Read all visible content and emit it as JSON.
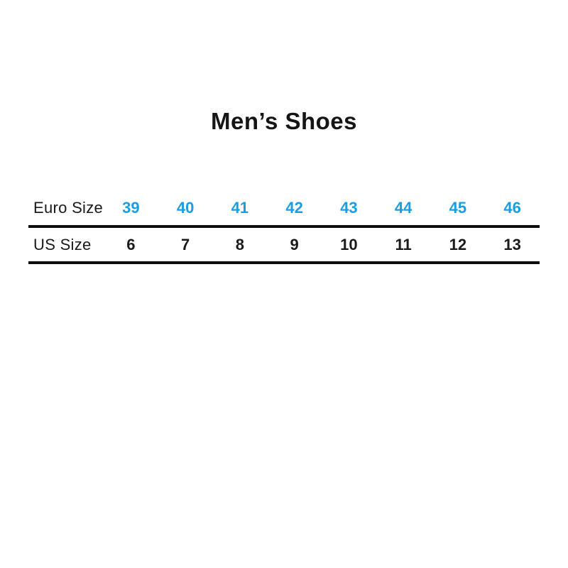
{
  "title": "Men’s Shoes",
  "colors": {
    "accent_blue": "#1b9de2",
    "text": "#1a1a1a",
    "rule_line": "#0d0d0d",
    "background": "#ffffff"
  },
  "table": {
    "rows": [
      {
        "label": "Euro Size",
        "values": [
          "39",
          "40",
          "41",
          "42",
          "43",
          "44",
          "45",
          "46"
        ]
      },
      {
        "label": "US Size",
        "values": [
          "6",
          "7",
          "8",
          "9",
          "10",
          "11",
          "12",
          "13"
        ]
      }
    ]
  },
  "chart_data": {
    "type": "table",
    "title": "Men’s Shoes",
    "rows": [
      {
        "name": "Euro Size",
        "values": [
          39,
          40,
          41,
          42,
          43,
          44,
          45,
          46
        ]
      },
      {
        "name": "US Size",
        "values": [
          6,
          7,
          8,
          9,
          10,
          11,
          12,
          13
        ]
      }
    ],
    "notes": "Shoe size conversion chart; Euro sizes shown in blue, US sizes in black, rows separated by thick black horizontal rules."
  }
}
